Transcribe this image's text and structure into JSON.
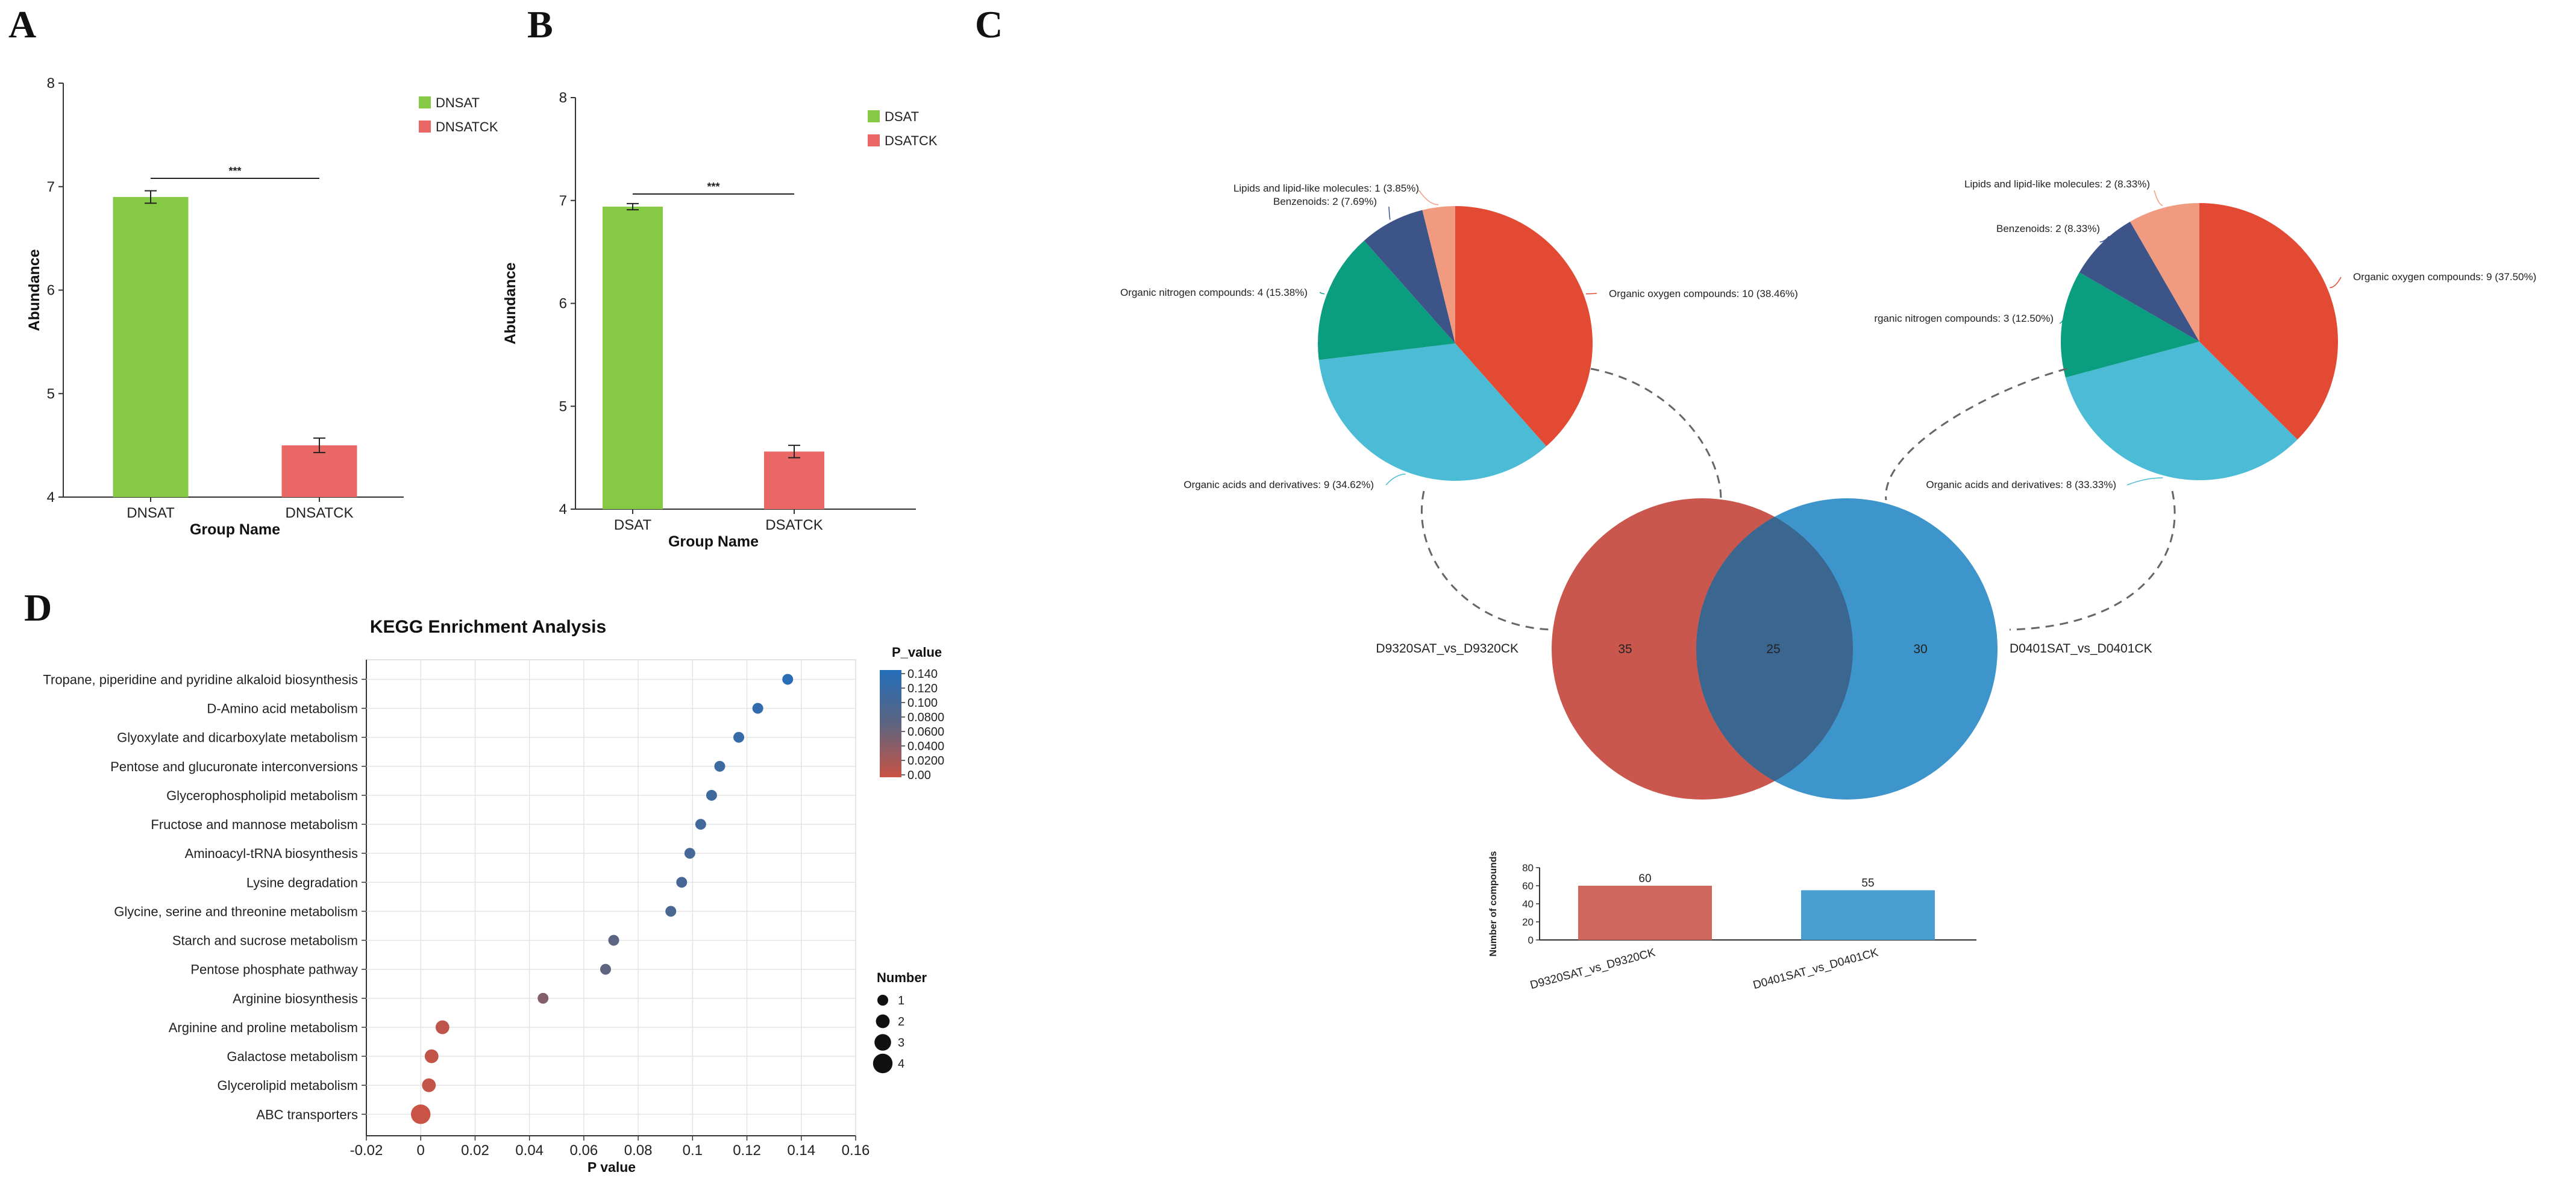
{
  "panels": {
    "a": "A",
    "b": "B",
    "c": "C",
    "d": "D"
  },
  "colors": {
    "green": "#86C944",
    "red": "#E96866",
    "pie_oxygen": "#E34A33",
    "pie_acids": "#4CBCD6",
    "pie_nitrogen": "#0B9D7F",
    "pie_benzenoids": "#3C5488",
    "pie_lipids": "#F09A80",
    "venn_left": "#C9574D",
    "venn_right": "#3E95CC",
    "venn_overlap": "#3A6690",
    "bar_left": "#CF685F",
    "bar_right": "#4A9DD0"
  },
  "chart_data": [
    {
      "id": "A",
      "type": "bar",
      "categories": [
        "DNSAT",
        "DNSATCK"
      ],
      "values": [
        6.9,
        4.5
      ],
      "errors": [
        0.06,
        0.07
      ],
      "xlabel": "Group Name",
      "ylabel": "Abundance",
      "ylim": [
        4,
        8
      ],
      "yticks": [
        "4",
        "5",
        "6",
        "7",
        "8"
      ],
      "significance": "***",
      "legend": [
        "DNSAT",
        "DNSATCK"
      ]
    },
    {
      "id": "B",
      "type": "bar",
      "categories": [
        "DSAT",
        "DSATCK"
      ],
      "values": [
        6.94,
        4.56
      ],
      "errors": [
        0.03,
        0.06
      ],
      "xlabel": "Group Name",
      "ylabel": "Abundance",
      "ylim": [
        4,
        8
      ],
      "yticks": [
        "4",
        "5",
        "6",
        "7",
        "8"
      ],
      "significance": "***",
      "legend": [
        "DSAT",
        "DSATCK"
      ]
    },
    {
      "id": "C-pie-left",
      "type": "pie",
      "slices": [
        {
          "name": "Organic oxygen compounds",
          "value": 10,
          "pct": "38.46%",
          "label": "Organic oxygen compounds: 10 (38.46%)"
        },
        {
          "name": "Organic acids and derivatives",
          "value": 9,
          "pct": "34.62%",
          "label": "Organic acids and derivatives: 9 (34.62%)"
        },
        {
          "name": "Organic nitrogen compounds",
          "value": 4,
          "pct": "15.38%",
          "label": "Organic nitrogen compounds: 4 (15.38%)"
        },
        {
          "name": "Benzenoids",
          "value": 2,
          "pct": "7.69%",
          "label": "Benzenoids: 2 (7.69%)"
        },
        {
          "name": "Lipids and lipid-like molecules",
          "value": 1,
          "pct": "3.85%",
          "label": "Lipids and lipid-like molecules: 1 (3.85%)"
        }
      ]
    },
    {
      "id": "C-pie-right",
      "type": "pie",
      "slices": [
        {
          "name": "Organic oxygen compounds",
          "value": 9,
          "pct": "37.50%",
          "label": "Organic oxygen compounds: 9 (37.50%)"
        },
        {
          "name": "Organic acids and derivatives",
          "value": 8,
          "pct": "33.33%",
          "label": "Organic acids and derivatives: 8 (33.33%)"
        },
        {
          "name": "Organic nitrogen compounds",
          "value": 3,
          "pct": "12.50%",
          "label": "rganic nitrogen compounds: 3 (12.50%)"
        },
        {
          "name": "Benzenoids",
          "value": 2,
          "pct": "8.33%",
          "label": "Benzenoids: 2 (8.33%)"
        },
        {
          "name": "Lipids and lipid-like molecules",
          "value": 2,
          "pct": "8.33%",
          "label": "Lipids and lipid-like molecules: 2 (8.33%)"
        }
      ]
    },
    {
      "id": "C-venn",
      "type": "venn",
      "sets": [
        "D9320SAT_vs_D9320CK",
        "D0401SAT_vs_D0401CK"
      ],
      "left_only": "35",
      "overlap": "25",
      "right_only": "30"
    },
    {
      "id": "C-bar",
      "type": "bar",
      "categories": [
        "D9320SAT_vs_D9320CK",
        "D0401SAT_vs_D0401CK"
      ],
      "values": [
        60,
        55
      ],
      "value_labels": [
        "60",
        "55"
      ],
      "ylabel": "Number of compounds",
      "ylim": [
        0,
        80
      ],
      "yticks": [
        "0",
        "20",
        "40",
        "60",
        "80"
      ]
    },
    {
      "id": "D",
      "type": "scatter",
      "title": "KEGG Enrichment Analysis",
      "xlabel": "P value",
      "xlim": [
        -0.02,
        0.16
      ],
      "xticks": [
        "-0.02",
        "0",
        "0.02",
        "0.04",
        "0.06",
        "0.08",
        "0.1",
        "0.12",
        "0.14",
        "0.16"
      ],
      "categories": [
        "Tropane, piperidine and pyridine alkaloid biosynthesis",
        "D-Amino acid metabolism",
        "Glyoxylate and dicarboxylate metabolism",
        "Pentose and glucuronate interconversions",
        "Glycerophospholipid metabolism",
        "Fructose and mannose metabolism",
        "Aminoacyl-tRNA biosynthesis",
        "Lysine degradation",
        "Glycine, serine and threonine metabolism",
        "Starch and sucrose metabolism",
        "Pentose phosphate pathway",
        "Arginine biosynthesis",
        "Arginine and proline metabolism",
        "Galactose metabolism",
        "Glycerolipid metabolism",
        "ABC transporters"
      ],
      "pvalues": [
        0.135,
        0.124,
        0.117,
        0.11,
        0.107,
        0.103,
        0.099,
        0.096,
        0.092,
        0.071,
        0.068,
        0.045,
        0.008,
        0.004,
        0.003,
        0.0
      ],
      "numbers": [
        1,
        1,
        1,
        1,
        1,
        1,
        1,
        1,
        1,
        1,
        1,
        1,
        2,
        2,
        2,
        4
      ],
      "color_legend": {
        "title": "P_value",
        "labels": [
          "0.140",
          "0.120",
          "0.100",
          "0.0800",
          "0.0600",
          "0.0400",
          "0.0200",
          "0.00"
        ]
      },
      "size_legend": {
        "title": "Number",
        "labels": [
          "1",
          "2",
          "3",
          "4"
        ]
      }
    }
  ]
}
